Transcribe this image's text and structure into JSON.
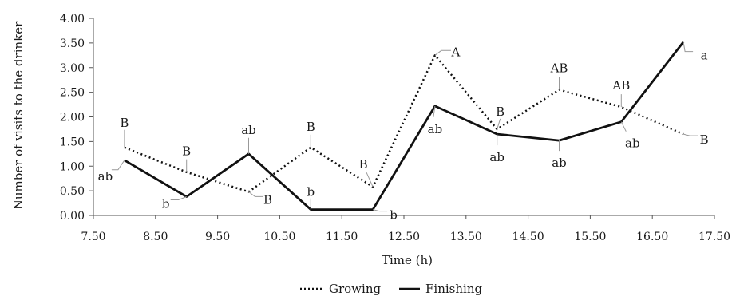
{
  "chart_data": {
    "type": "line",
    "title": "",
    "xlabel": "Time (h)",
    "ylabel": "Number of visits to the drinker",
    "xlim": [
      7.5,
      17.5
    ],
    "ylim": [
      0,
      4
    ],
    "x_ticks": [
      "7.50",
      "8.50",
      "9.50",
      "10.50",
      "11.50",
      "12.50",
      "13.50",
      "14.50",
      "15.50",
      "16.50",
      "17.50"
    ],
    "y_ticks": [
      "0.00",
      "0.50",
      "1.00",
      "1.50",
      "2.00",
      "2.50",
      "3.00",
      "3.50",
      "4.00"
    ],
    "grid": false,
    "legend_position": "bottom",
    "series": [
      {
        "name": "Growing",
        "style": "dotted",
        "color": "#111111",
        "x": [
          8,
          9,
          10,
          11,
          12,
          13,
          14,
          15,
          16,
          17
        ],
        "y": [
          1.38,
          0.88,
          0.48,
          1.38,
          0.58,
          3.25,
          1.75,
          2.55,
          2.2,
          1.65
        ],
        "labels": [
          "B",
          "B",
          "B",
          "B",
          "B",
          "A",
          "B",
          "AB",
          "AB",
          "B"
        ]
      },
      {
        "name": "Finishing",
        "style": "solid",
        "color": "#111111",
        "x": [
          8,
          9,
          10,
          11,
          12,
          13,
          14,
          15,
          16,
          17
        ],
        "y": [
          1.12,
          0.38,
          1.25,
          0.12,
          0.12,
          2.22,
          1.65,
          1.52,
          1.9,
          3.52
        ],
        "labels": [
          "ab",
          "b",
          "ab",
          "b",
          "b",
          "ab",
          "ab",
          "ab",
          "ab",
          "a"
        ]
      }
    ]
  }
}
